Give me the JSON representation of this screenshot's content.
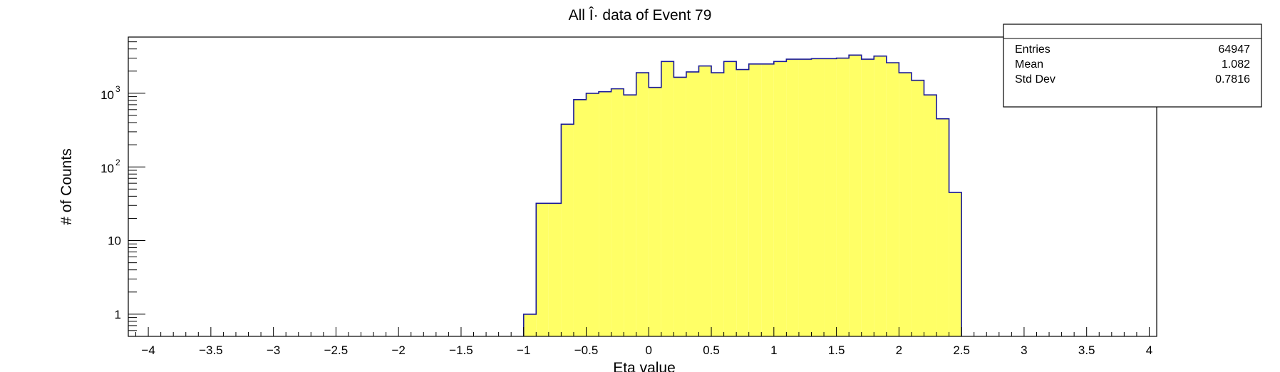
{
  "chart_data": {
    "type": "histogram",
    "title": "All Î· data of Event 79",
    "xlabel": "Eta value",
    "ylabel": "# of Counts",
    "xlim": [
      -4.16,
      4.06
    ],
    "ylim": [
      0.5,
      5800
    ],
    "yscale": "log",
    "grid": false,
    "fill_color": "#ffff66",
    "line_color": "#1a1a99",
    "bin_start": -1.0,
    "bin_width": 0.1,
    "values": [
      1,
      32,
      32,
      380,
      820,
      1000,
      1050,
      1150,
      950,
      1900,
      1200,
      2700,
      1650,
      1950,
      2350,
      1900,
      2700,
      2100,
      2500,
      2500,
      2700,
      2900,
      2900,
      2950,
      2950,
      3000,
      3300,
      2900,
      3200,
      2600,
      1900,
      1500,
      950,
      450,
      45
    ],
    "x_ticks": [
      {
        "value": -4,
        "label": "−4"
      },
      {
        "value": -3.5,
        "label": "−3.5"
      },
      {
        "value": -3,
        "label": "−3"
      },
      {
        "value": -2.5,
        "label": "−2.5"
      },
      {
        "value": -2,
        "label": "−2"
      },
      {
        "value": -1.5,
        "label": "−1.5"
      },
      {
        "value": -1,
        "label": "−1"
      },
      {
        "value": -0.5,
        "label": "−0.5"
      },
      {
        "value": 0,
        "label": "0"
      },
      {
        "value": 0.5,
        "label": "0.5"
      },
      {
        "value": 1,
        "label": "1"
      },
      {
        "value": 1.5,
        "label": "1.5"
      },
      {
        "value": 2,
        "label": "2"
      },
      {
        "value": 2.5,
        "label": "2.5"
      },
      {
        "value": 3,
        "label": "3"
      },
      {
        "value": 3.5,
        "label": "3.5"
      },
      {
        "value": 4,
        "label": "4"
      }
    ],
    "y_ticks": [
      {
        "value": 1,
        "base": "1",
        "exp": ""
      },
      {
        "value": 10,
        "base": "10",
        "exp": ""
      },
      {
        "value": 100,
        "base": "10",
        "exp": "2"
      },
      {
        "value": 1000,
        "base": "10",
        "exp": "3"
      }
    ],
    "stats": {
      "rows": [
        {
          "label": "Entries",
          "value": "64947"
        },
        {
          "label": "Mean",
          "value": "1.082"
        },
        {
          "label": "Std Dev",
          "value": "0.7816"
        }
      ]
    }
  }
}
